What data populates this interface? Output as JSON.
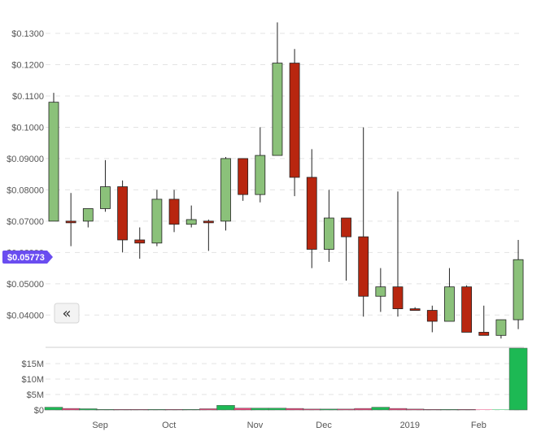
{
  "chart_data": {
    "type": "candlestick",
    "price_axis": {
      "ticks": [
        "$0.04000",
        "$0.05000",
        "$0.06000",
        "$0.07000",
        "$0.08000",
        "$0.09000",
        "$0.1000",
        "$0.1100",
        "$0.1200",
        "$0.1300"
      ],
      "tick_values": [
        0.04,
        0.05,
        0.06,
        0.07,
        0.08,
        0.09,
        0.1,
        0.11,
        0.12,
        0.13
      ],
      "range": [
        0.0315,
        0.1365
      ],
      "grid": true
    },
    "current_price_label": "$0.05773",
    "current_price": 0.05773,
    "volume_axis": {
      "ticks": [
        "$0",
        "$5M",
        "$10M",
        "$15M"
      ],
      "tick_values": [
        0,
        5,
        10,
        15
      ],
      "unit": "M",
      "range": [
        0,
        20
      ]
    },
    "x_axis": {
      "labels": [
        {
          "text": "Sep",
          "index": 2.7
        },
        {
          "text": "Oct",
          "index": 6.7
        },
        {
          "text": "Nov",
          "index": 11.7
        },
        {
          "text": "Dec",
          "index": 15.7
        },
        {
          "text": "2019",
          "index": 20.7
        },
        {
          "text": "Feb",
          "index": 24.7
        }
      ]
    },
    "colors": {
      "up": "#8bc17a",
      "down": "#b8260f",
      "volume_up": "#1db954",
      "volume_down": "#e8457a",
      "price_tag": "#6a4df0"
    },
    "candles": [
      {
        "open": 0.07,
        "high": 0.111,
        "low": 0.07,
        "close": 0.108
      },
      {
        "open": 0.07,
        "high": 0.079,
        "low": 0.062,
        "close": 0.0695
      },
      {
        "open": 0.07,
        "high": 0.074,
        "low": 0.068,
        "close": 0.074
      },
      {
        "open": 0.074,
        "high": 0.0895,
        "low": 0.073,
        "close": 0.081
      },
      {
        "open": 0.081,
        "high": 0.083,
        "low": 0.06,
        "close": 0.064
      },
      {
        "open": 0.064,
        "high": 0.068,
        "low": 0.058,
        "close": 0.063
      },
      {
        "open": 0.063,
        "high": 0.08,
        "low": 0.062,
        "close": 0.077
      },
      {
        "open": 0.077,
        "high": 0.08,
        "low": 0.0665,
        "close": 0.069
      },
      {
        "open": 0.069,
        "high": 0.075,
        "low": 0.068,
        "close": 0.0705
      },
      {
        "open": 0.07,
        "high": 0.0705,
        "low": 0.0605,
        "close": 0.0695
      },
      {
        "open": 0.07,
        "high": 0.0905,
        "low": 0.067,
        "close": 0.09
      },
      {
        "open": 0.09,
        "high": 0.09,
        "low": 0.0765,
        "close": 0.0785
      },
      {
        "open": 0.0785,
        "high": 0.1,
        "low": 0.076,
        "close": 0.091
      },
      {
        "open": 0.091,
        "high": 0.1335,
        "low": 0.091,
        "close": 0.1205
      },
      {
        "open": 0.1205,
        "high": 0.125,
        "low": 0.078,
        "close": 0.084
      },
      {
        "open": 0.084,
        "high": 0.093,
        "low": 0.055,
        "close": 0.061
      },
      {
        "open": 0.061,
        "high": 0.08,
        "low": 0.057,
        "close": 0.071
      },
      {
        "open": 0.071,
        "high": 0.071,
        "low": 0.051,
        "close": 0.065
      },
      {
        "open": 0.065,
        "high": 0.1,
        "low": 0.0395,
        "close": 0.046
      },
      {
        "open": 0.046,
        "high": 0.055,
        "low": 0.041,
        "close": 0.049
      },
      {
        "open": 0.049,
        "high": 0.0795,
        "low": 0.0395,
        "close": 0.042
      },
      {
        "open": 0.042,
        "high": 0.0425,
        "low": 0.0415,
        "close": 0.0415
      },
      {
        "open": 0.0415,
        "high": 0.043,
        "low": 0.0345,
        "close": 0.038
      },
      {
        "open": 0.038,
        "high": 0.055,
        "low": 0.038,
        "close": 0.049
      },
      {
        "open": 0.049,
        "high": 0.0495,
        "low": 0.0345,
        "close": 0.0345
      },
      {
        "open": 0.0345,
        "high": 0.043,
        "low": 0.0335,
        "close": 0.0335
      },
      {
        "open": 0.0335,
        "high": 0.0385,
        "low": 0.0325,
        "close": 0.0385
      },
      {
        "open": 0.0385,
        "high": 0.064,
        "low": 0.0355,
        "close": 0.0577
      }
    ],
    "volume": [
      0.9,
      0.5,
      0.4,
      0.2,
      0.2,
      0.2,
      0.2,
      0.2,
      0.2,
      0.4,
      1.5,
      0.6,
      0.6,
      0.6,
      0.5,
      0.3,
      0.3,
      0.3,
      0.5,
      0.9,
      0.5,
      0.3,
      0.2,
      0.2,
      0.2,
      0.0,
      0.0,
      20.0
    ]
  },
  "controls": {
    "collapse_glyph": "«"
  }
}
